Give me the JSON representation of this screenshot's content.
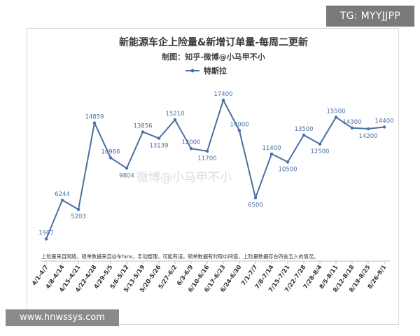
{
  "overlay": {
    "tg_tag": "TG: MYYJJPP",
    "site_tag": "www.hnwssys.com",
    "watermark": "微博@小马甲不小"
  },
  "chart_data": {
    "type": "line",
    "title": "新能源车企上险量&新增订单量-每周二更新",
    "subtitle": "制图：知乎-微博@小马甲不小",
    "note": "上险量来自网络，锁单数据来自@车fans，手动整理，可能有误，锁单数据有时取中间值，上险量数据存在四舍五入的情况。",
    "xlabel": "",
    "ylabel": "",
    "legend_position": "top",
    "grid": false,
    "categories": [
      "4/1-4/7",
      "4/8-4/14",
      "4/15-4/21",
      "4/22-4/28",
      "4/29-5/5",
      "5/6-5/12",
      "5/13-5/19",
      "5/20-5/26",
      "5/27-6/2",
      "6/3-6/9",
      "6/10-6/16",
      "6/17-6/23",
      "6/24-6/30",
      "7/1-7/7",
      "7/8-7/14",
      "7/15-7/21",
      "7/22-7/28",
      "7/28-8/4",
      "8/5-8/11",
      "8/12-8/18",
      "8/19-8/25",
      "8/26-9/1"
    ],
    "series": [
      {
        "name": "特斯拉",
        "color": "#4a6fa5",
        "values": [
          1907,
          6244,
          5203,
          14859,
          10966,
          9804,
          13856,
          13139,
          15210,
          12000,
          11700,
          17400,
          14000,
          6500,
          11400,
          10500,
          13500,
          12500,
          15500,
          14300,
          14200,
          14400
        ],
        "labels": [
          "1907",
          "6244",
          "5203",
          "14859",
          "10966",
          "9804",
          "13856",
          "13139",
          "15210",
          "12000",
          "11700",
          "17400",
          "14000",
          "6500",
          "11400",
          "10500",
          "13500",
          "12500",
          "15500",
          "14300",
          "14200",
          "14400"
        ]
      }
    ],
    "ylim": [
      1000,
      18500
    ]
  }
}
